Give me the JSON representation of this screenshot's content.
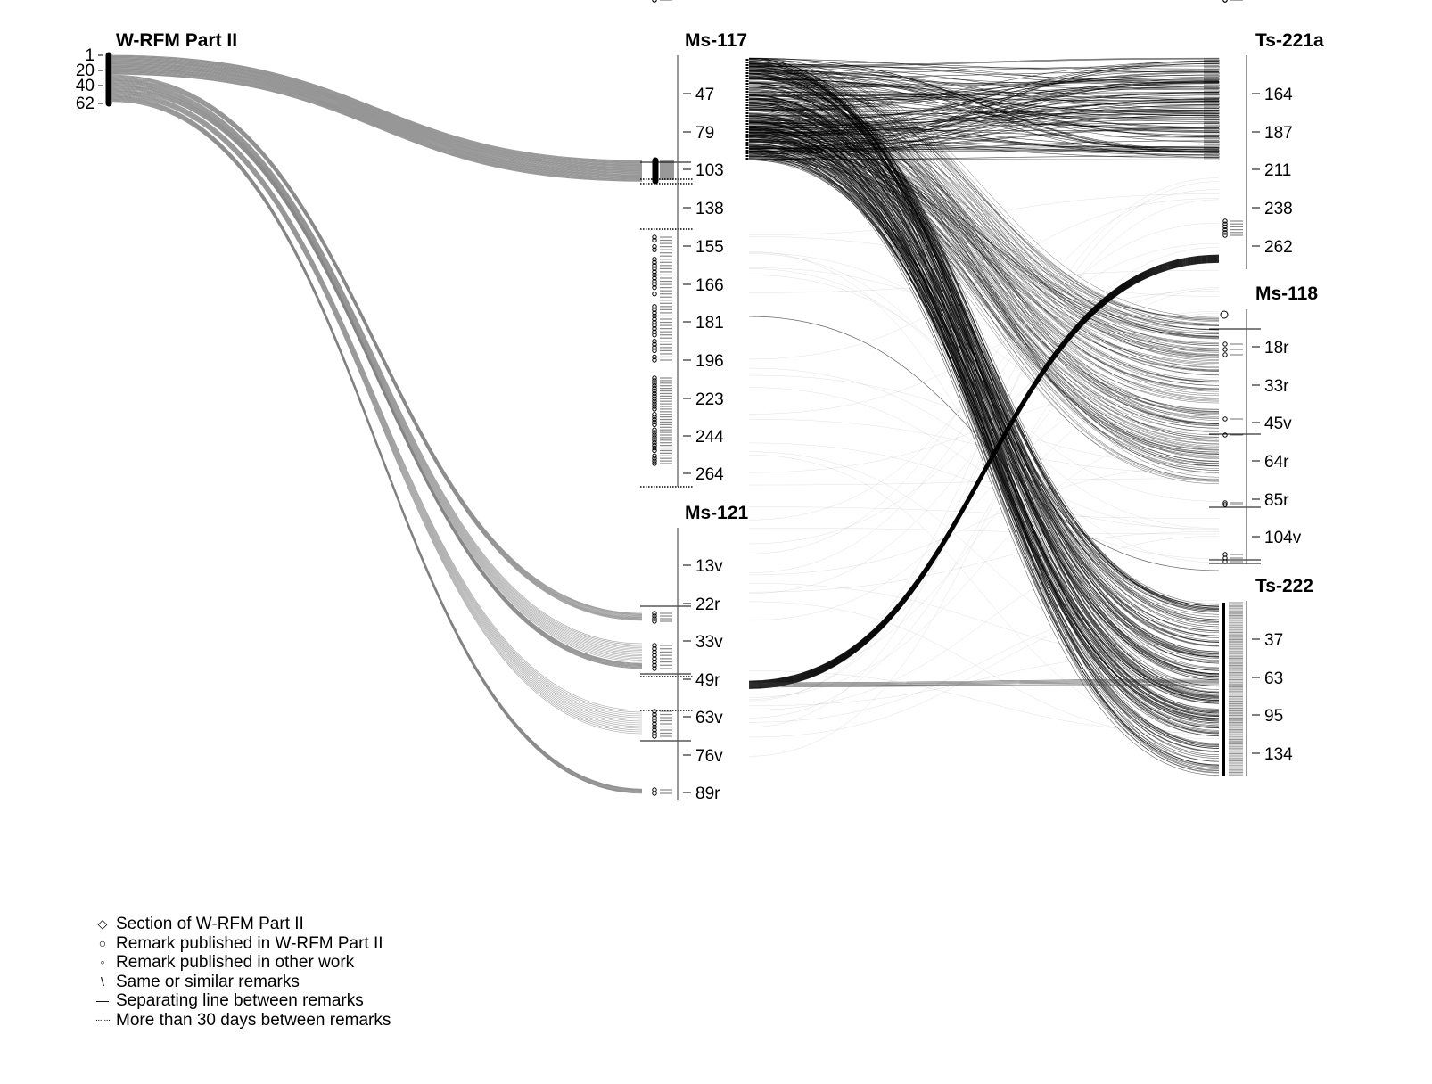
{
  "axes": [
    {
      "id": "wrfm",
      "title": "W-RFM Part II",
      "ticks": [
        "1",
        "20",
        "40",
        "62"
      ]
    },
    {
      "id": "ms117",
      "title": "Ms-117",
      "ticks": [
        "47",
        "79",
        "103",
        "138",
        "155",
        "166",
        "181",
        "196",
        "223",
        "244",
        "264"
      ]
    },
    {
      "id": "ms121",
      "title": "Ms-121",
      "ticks": [
        "13v",
        "22r",
        "33v",
        "49r",
        "63v",
        "76v",
        "89r"
      ]
    },
    {
      "id": "ts221a",
      "title": "Ts-221a",
      "ticks": [
        "164",
        "187",
        "211",
        "238",
        "262"
      ]
    },
    {
      "id": "ms118",
      "title": "Ms-118",
      "ticks": [
        "18r",
        "33r",
        "45v",
        "64r",
        "85r",
        "104v"
      ]
    },
    {
      "id": "ts222",
      "title": "Ts-222",
      "ticks": [
        "37",
        "63",
        "95",
        "134"
      ]
    }
  ],
  "legend": [
    {
      "icon": "diamond-icon",
      "symbol": "◇",
      "label": "Section of W-RFM Part II"
    },
    {
      "icon": "circle-icon",
      "symbol": "○",
      "label": "Remark published in W-RFM Part II"
    },
    {
      "icon": "small-circle-icon",
      "symbol": "◦",
      "label": "Remark published in other work"
    },
    {
      "icon": "curve-icon",
      "symbol": "\\",
      "label": "Same or similar remarks"
    },
    {
      "icon": "solid-line-icon",
      "symbol": "—",
      "label": "Separating line between remarks"
    },
    {
      "icon": "dotted-line-icon",
      "symbol": "·······",
      "label": "More than 30 days between remarks"
    }
  ],
  "colors": {
    "flow": "#000000",
    "flow_gray": "#808080",
    "faint": "#d8d8d8",
    "axis": "#555555"
  }
}
